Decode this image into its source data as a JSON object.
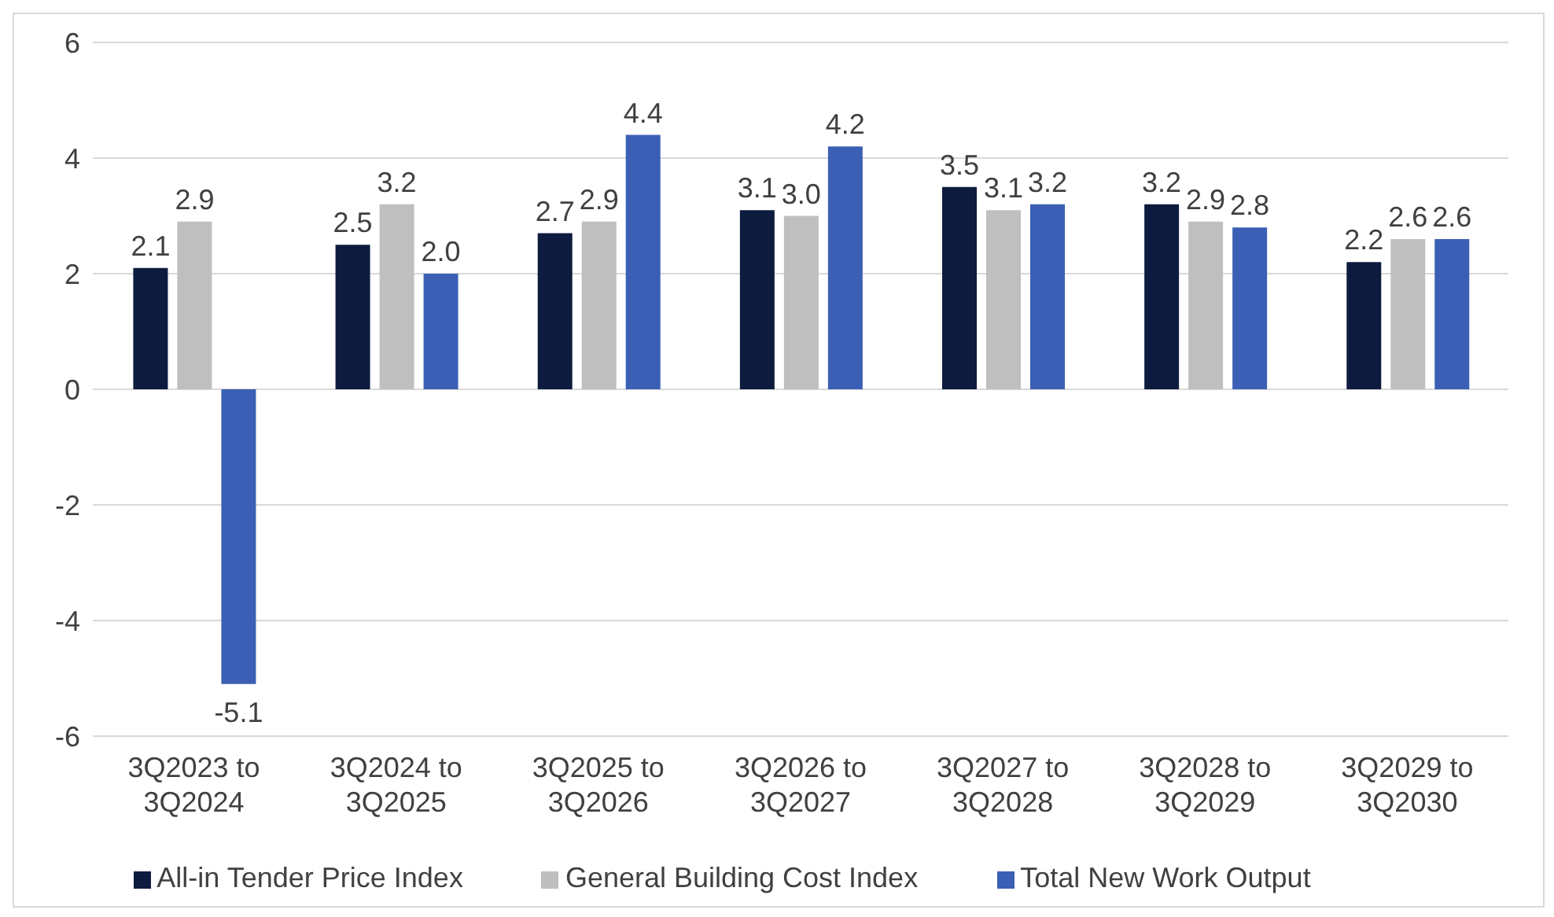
{
  "chart_data": {
    "type": "bar",
    "categories": [
      "3Q2023 to 3Q2024",
      "3Q2024 to 3Q2025",
      "3Q2025 to 3Q2026",
      "3Q2026 to 3Q2027",
      "3Q2027 to 3Q2028",
      "3Q2028 to 3Q2029",
      "3Q2029 to 3Q2030"
    ],
    "series": [
      {
        "name": "All-in Tender Price Index",
        "color": "#0d1b3e",
        "values": [
          2.1,
          2.5,
          2.7,
          3.1,
          3.5,
          3.2,
          2.2
        ],
        "value_labels": [
          "2.1",
          "2.5",
          "2.7",
          "3.1",
          "3.5",
          "3.2",
          "2.2"
        ]
      },
      {
        "name": "General Building Cost Index",
        "color": "#bfbfbf",
        "values": [
          2.9,
          3.2,
          2.9,
          3.0,
          3.1,
          2.9,
          2.6
        ],
        "value_labels": [
          "2.9",
          "3.2",
          "2.9",
          "3.0",
          "3.1",
          "2.9",
          "2.6"
        ]
      },
      {
        "name": "Total New Work Output",
        "color": "#3a5fb5",
        "values": [
          -5.1,
          2.0,
          4.4,
          4.2,
          3.2,
          2.8,
          2.6
        ],
        "value_labels": [
          "-5.1",
          "2.0",
          "4.4",
          "4.2",
          "3.2",
          "2.8",
          "2.6"
        ]
      }
    ],
    "ylim": [
      -6,
      6
    ],
    "yticks": [
      -6,
      -4,
      -2,
      0,
      2,
      4,
      6
    ],
    "grid": "y",
    "legend": "bottom"
  }
}
